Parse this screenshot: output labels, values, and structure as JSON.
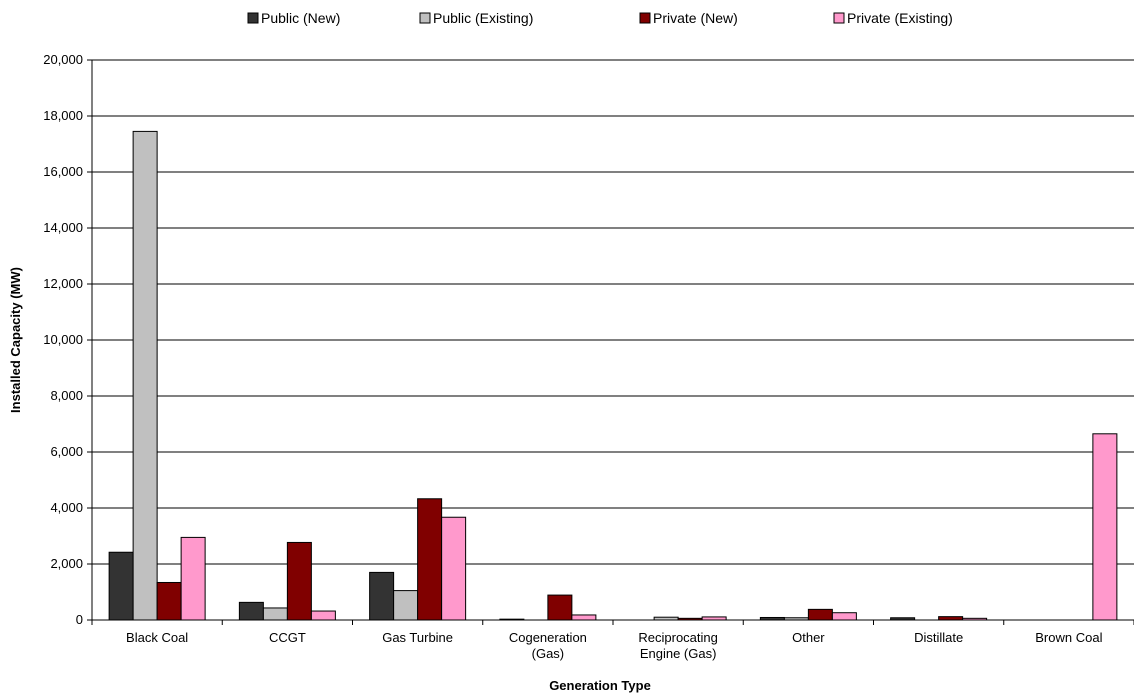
{
  "chart_data": {
    "type": "bar",
    "xlabel": "Generation Type",
    "ylabel": "Installed Capacity (MW)",
    "ylim": [
      0,
      20000
    ],
    "y_ticks": [
      "0",
      "2,000",
      "4,000",
      "6,000",
      "8,000",
      "10,000",
      "12,000",
      "14,000",
      "16,000",
      "18,000",
      "20,000"
    ],
    "categories": [
      [
        "Black Coal"
      ],
      [
        "CCGT"
      ],
      [
        "Gas Turbine"
      ],
      [
        "Cogeneration",
        "(Gas)"
      ],
      [
        "Reciprocating",
        "Engine (Gas)"
      ],
      [
        "Other"
      ],
      [
        "Distillate"
      ],
      [
        "Brown Coal"
      ]
    ],
    "grid": true,
    "legend_position": "top",
    "series": [
      {
        "name": "Public (New)",
        "color": "#333333",
        "values": [
          2420,
          630,
          1700,
          30,
          0,
          90,
          80,
          0
        ]
      },
      {
        "name": "Public (Existing)",
        "color": "#c0c0c0",
        "values": [
          17450,
          430,
          1050,
          0,
          100,
          80,
          0,
          0
        ]
      },
      {
        "name": "Private (New)",
        "color": "#800000",
        "values": [
          1340,
          2770,
          4330,
          890,
          60,
          380,
          120,
          0
        ]
      },
      {
        "name": "Private (Existing)",
        "color": "#ff99cc",
        "values": [
          2950,
          320,
          3670,
          180,
          110,
          260,
          60,
          6650
        ]
      }
    ]
  }
}
